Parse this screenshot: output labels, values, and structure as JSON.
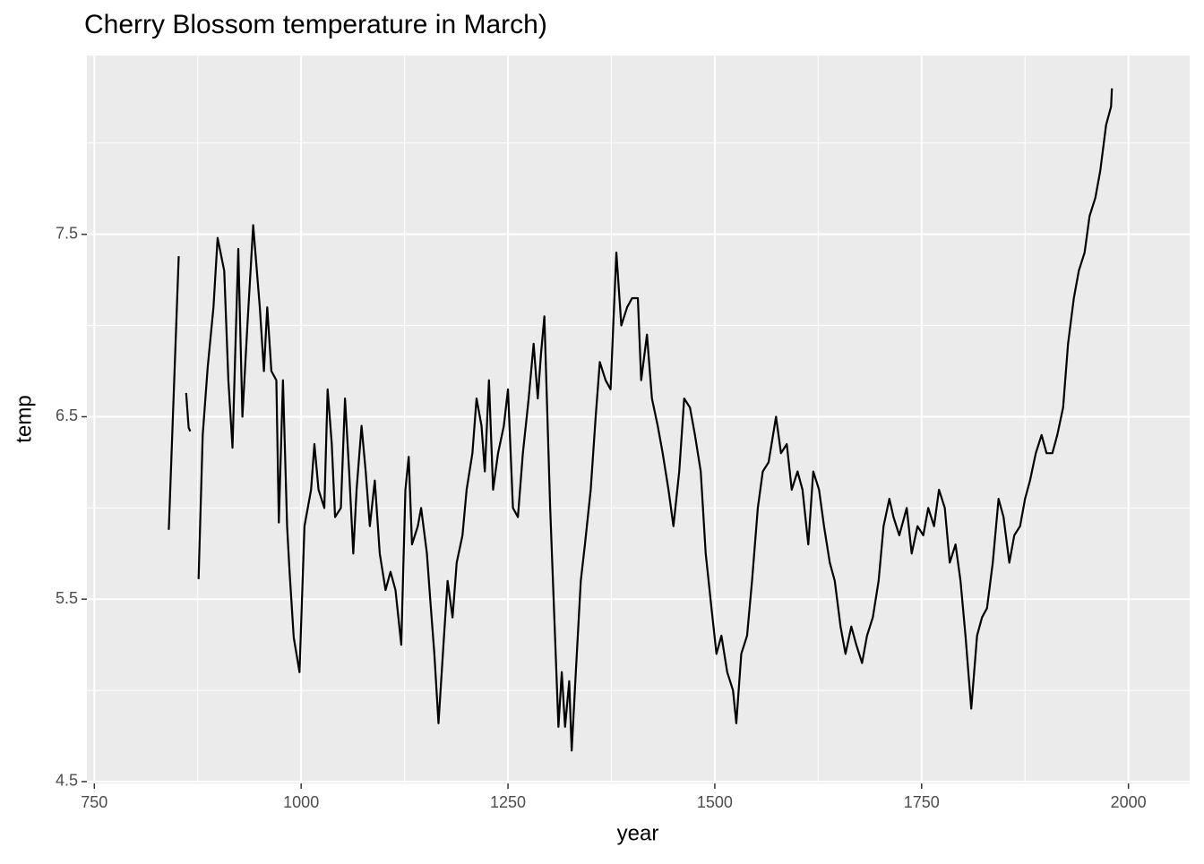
{
  "chart_data": {
    "type": "line",
    "title": "Cherry Blossom temperature in March)",
    "x_label": "year",
    "y_label": "temp",
    "color": "#000000",
    "grid": true,
    "xlim": [
      741,
      2074
    ],
    "ylim": [
      4.49,
      8.48
    ],
    "xticks": [
      750,
      1000,
      1250,
      1500,
      1750,
      2000
    ],
    "yticks": [
      4.5,
      5.5,
      6.5,
      7.5
    ],
    "x": [
      840,
      852,
      856,
      861,
      864,
      866,
      870,
      876,
      881,
      887,
      894,
      899,
      907,
      912,
      917,
      920,
      924,
      929,
      935,
      942,
      950,
      955,
      959,
      964,
      970,
      973,
      978,
      983,
      986,
      991,
      998,
      1004,
      1012,
      1016,
      1021,
      1028,
      1032,
      1037,
      1041,
      1048,
      1053,
      1058,
      1063,
      1067,
      1073,
      1078,
      1083,
      1089,
      1095,
      1102,
      1108,
      1114,
      1121,
      1126,
      1130,
      1134,
      1141,
      1145,
      1152,
      1156,
      1161,
      1166,
      1172,
      1177,
      1183,
      1188,
      1195,
      1200,
      1207,
      1212,
      1218,
      1222,
      1227,
      1232,
      1238,
      1245,
      1250,
      1256,
      1262,
      1268,
      1275,
      1281,
      1286,
      1290,
      1294,
      1301,
      1306,
      1311,
      1315,
      1319,
      1324,
      1327,
      1332,
      1338,
      1343,
      1350,
      1356,
      1361,
      1368,
      1374,
      1381,
      1387,
      1394,
      1400,
      1407,
      1411,
      1418,
      1424,
      1431,
      1437,
      1444,
      1450,
      1457,
      1463,
      1470,
      1476,
      1483,
      1489,
      1496,
      1502,
      1508,
      1515,
      1522,
      1526,
      1532,
      1539,
      1545,
      1552,
      1558,
      1565,
      1574,
      1580,
      1587,
      1593,
      1600,
      1606,
      1613,
      1619,
      1626,
      1632,
      1639,
      1645,
      1652,
      1658,
      1665,
      1671,
      1678,
      1684,
      1691,
      1698,
      1704,
      1711,
      1716,
      1723,
      1732,
      1738,
      1745,
      1752,
      1758,
      1765,
      1771,
      1778,
      1784,
      1791,
      1797,
      1803,
      1810,
      1817,
      1823,
      1829,
      1836,
      1843,
      1849,
      1856,
      1862,
      1869,
      1875,
      1881,
      1888,
      1895,
      1901,
      1908,
      1914,
      1921,
      1927,
      1934,
      1940,
      1947,
      1953,
      1960,
      1966,
      1973,
      1979,
      1980
    ],
    "values": [
      5.88,
      7.38,
      null,
      6.63,
      6.44,
      6.42,
      null,
      5.61,
      6.4,
      6.77,
      7.1,
      7.48,
      7.3,
      6.7,
      6.33,
      6.8,
      7.42,
      6.5,
      7.0,
      7.55,
      7.1,
      6.75,
      7.1,
      6.75,
      6.7,
      5.92,
      6.7,
      5.9,
      5.65,
      5.29,
      5.1,
      5.9,
      6.1,
      6.35,
      6.1,
      6.0,
      6.65,
      6.35,
      5.95,
      6.0,
      6.6,
      6.2,
      5.75,
      6.1,
      6.45,
      6.2,
      5.9,
      6.15,
      5.75,
      5.55,
      5.65,
      5.55,
      5.25,
      6.1,
      6.28,
      5.8,
      5.9,
      6.0,
      5.75,
      5.5,
      5.2,
      4.82,
      5.25,
      5.6,
      5.4,
      5.7,
      5.85,
      6.1,
      6.3,
      6.6,
      6.45,
      6.2,
      6.7,
      6.1,
      6.3,
      6.45,
      6.65,
      6.0,
      5.95,
      6.3,
      6.6,
      6.9,
      6.6,
      6.85,
      7.05,
      6.0,
      5.4,
      4.8,
      5.1,
      4.8,
      5.05,
      4.67,
      5.1,
      5.6,
      5.8,
      6.1,
      6.5,
      6.8,
      6.7,
      6.65,
      7.4,
      7.0,
      7.1,
      7.15,
      7.15,
      6.7,
      6.95,
      6.6,
      6.45,
      6.3,
      6.1,
      5.9,
      6.2,
      6.6,
      6.55,
      6.4,
      6.2,
      5.75,
      5.45,
      5.2,
      5.3,
      5.1,
      5.0,
      4.82,
      5.2,
      5.3,
      5.6,
      6.0,
      6.2,
      6.25,
      6.5,
      6.3,
      6.35,
      6.1,
      6.2,
      6.1,
      5.8,
      6.2,
      6.1,
      5.9,
      5.7,
      5.6,
      5.35,
      5.2,
      5.35,
      5.25,
      5.15,
      5.3,
      5.4,
      5.6,
      5.9,
      6.05,
      5.95,
      5.85,
      6.0,
      5.75,
      5.9,
      5.85,
      6.0,
      5.9,
      6.1,
      6.0,
      5.7,
      5.8,
      5.6,
      5.3,
      4.9,
      5.3,
      5.4,
      5.45,
      5.7,
      6.05,
      5.95,
      5.7,
      5.85,
      5.9,
      6.05,
      6.15,
      6.3,
      6.4,
      6.3,
      6.3,
      6.4,
      6.55,
      6.9,
      7.15,
      7.3,
      7.4,
      7.6,
      7.7,
      7.85,
      8.1,
      8.2,
      8.3
    ]
  }
}
